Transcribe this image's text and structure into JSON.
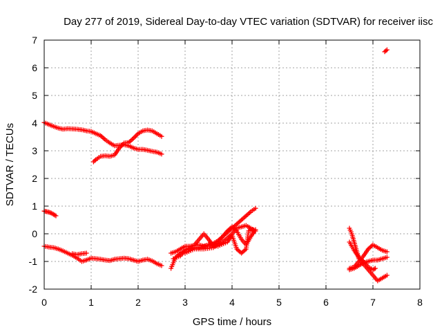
{
  "chart_data": {
    "type": "scatter",
    "title": "Day 277 of 2019, Sidereal Day-to-day VTEC variation (SDTVAR) for receiver iisc",
    "xlabel": "GPS time / hours",
    "ylabel": "SDTVAR / TECUs",
    "xlim": [
      0,
      8
    ],
    "ylim": [
      -2,
      7
    ],
    "xticks": [
      "0",
      "1",
      "2",
      "3",
      "4",
      "5",
      "6",
      "7",
      "8"
    ],
    "yticks": [
      "-2",
      "-1",
      "0",
      "1",
      "2",
      "3",
      "4",
      "5",
      "6",
      "7"
    ],
    "grid": true,
    "marker": "+",
    "color": "#ff0000",
    "series": [
      {
        "name": "track-a-upper",
        "points": [
          [
            0.0,
            4.02
          ],
          [
            0.1,
            3.95
          ],
          [
            0.2,
            3.88
          ],
          [
            0.3,
            3.82
          ],
          [
            0.4,
            3.78
          ],
          [
            0.5,
            3.8
          ],
          [
            0.6,
            3.79
          ],
          [
            0.7,
            3.78
          ],
          [
            0.8,
            3.76
          ],
          [
            0.9,
            3.72
          ],
          [
            1.0,
            3.7
          ],
          [
            1.1,
            3.62
          ],
          [
            1.2,
            3.55
          ],
          [
            1.3,
            3.4
          ],
          [
            1.4,
            3.28
          ],
          [
            1.5,
            3.18
          ],
          [
            1.6,
            3.2
          ],
          [
            1.7,
            3.22
          ],
          [
            1.8,
            3.18
          ],
          [
            1.9,
            3.1
          ],
          [
            2.0,
            3.05
          ],
          [
            2.1,
            3.05
          ],
          [
            2.2,
            3.02
          ],
          [
            2.3,
            2.98
          ],
          [
            2.4,
            2.95
          ],
          [
            2.5,
            2.88
          ]
        ]
      },
      {
        "name": "track-b-upper",
        "points": [
          [
            1.05,
            2.6
          ],
          [
            1.1,
            2.68
          ],
          [
            1.2,
            2.8
          ],
          [
            1.3,
            2.82
          ],
          [
            1.4,
            2.8
          ],
          [
            1.5,
            2.85
          ],
          [
            1.6,
            3.1
          ],
          [
            1.7,
            3.28
          ],
          [
            1.8,
            3.3
          ],
          [
            1.9,
            3.45
          ],
          [
            2.0,
            3.62
          ],
          [
            2.1,
            3.72
          ],
          [
            2.2,
            3.75
          ],
          [
            2.3,
            3.72
          ],
          [
            2.4,
            3.62
          ],
          [
            2.5,
            3.52
          ]
        ]
      },
      {
        "name": "track-c-short",
        "points": [
          [
            0.0,
            0.82
          ],
          [
            0.05,
            0.8
          ],
          [
            0.1,
            0.78
          ],
          [
            0.15,
            0.75
          ],
          [
            0.2,
            0.7
          ],
          [
            0.25,
            0.65
          ]
        ]
      },
      {
        "name": "track-d-lower",
        "points": [
          [
            0.0,
            -0.45
          ],
          [
            0.1,
            -0.48
          ],
          [
            0.2,
            -0.5
          ],
          [
            0.3,
            -0.55
          ],
          [
            0.4,
            -0.62
          ],
          [
            0.5,
            -0.7
          ],
          [
            0.6,
            -0.78
          ],
          [
            0.7,
            -0.88
          ],
          [
            0.8,
            -1.0
          ],
          [
            0.9,
            -0.95
          ],
          [
            1.0,
            -0.88
          ],
          [
            1.1,
            -0.9
          ],
          [
            1.2,
            -0.92
          ],
          [
            1.3,
            -0.95
          ],
          [
            1.4,
            -0.97
          ],
          [
            1.5,
            -0.92
          ],
          [
            1.6,
            -0.9
          ],
          [
            1.7,
            -0.88
          ],
          [
            1.8,
            -0.9
          ],
          [
            1.9,
            -0.95
          ],
          [
            2.0,
            -1.0
          ],
          [
            2.1,
            -0.95
          ],
          [
            2.2,
            -0.92
          ],
          [
            2.3,
            -0.98
          ],
          [
            2.4,
            -1.08
          ],
          [
            2.5,
            -1.15
          ]
        ]
      },
      {
        "name": "track-e-lower-short",
        "points": [
          [
            0.6,
            -0.72
          ],
          [
            0.7,
            -0.75
          ],
          [
            0.8,
            -0.72
          ],
          [
            0.9,
            -0.7
          ]
        ]
      },
      {
        "name": "track-f-mid-1",
        "points": [
          [
            2.7,
            -1.25
          ],
          [
            2.8,
            -0.85
          ],
          [
            2.9,
            -0.7
          ],
          [
            3.0,
            -0.6
          ],
          [
            3.1,
            -0.5
          ],
          [
            3.2,
            -0.4
          ],
          [
            3.3,
            -0.2
          ],
          [
            3.4,
            0.0
          ],
          [
            3.5,
            -0.2
          ],
          [
            3.6,
            -0.45
          ],
          [
            3.7,
            -0.3
          ],
          [
            3.8,
            -0.1
          ],
          [
            3.9,
            0.05
          ],
          [
            4.0,
            0.2
          ],
          [
            4.1,
            0.35
          ],
          [
            4.2,
            0.5
          ],
          [
            4.3,
            0.65
          ],
          [
            4.4,
            0.8
          ],
          [
            4.5,
            0.92
          ]
        ]
      },
      {
        "name": "track-g-mid-2",
        "points": [
          [
            2.7,
            -0.7
          ],
          [
            2.8,
            -0.65
          ],
          [
            2.9,
            -0.55
          ],
          [
            3.0,
            -0.45
          ],
          [
            3.1,
            -0.45
          ],
          [
            3.2,
            -0.42
          ],
          [
            3.3,
            -0.4
          ],
          [
            3.4,
            -0.45
          ],
          [
            3.5,
            -0.4
          ],
          [
            3.6,
            -0.35
          ],
          [
            3.7,
            -0.25
          ],
          [
            3.8,
            -0.1
          ],
          [
            3.9,
            0.1
          ],
          [
            4.0,
            0.25
          ],
          [
            4.1,
            0.1
          ],
          [
            4.2,
            -0.2
          ],
          [
            4.3,
            -0.4
          ],
          [
            4.4,
            -0.1
          ],
          [
            4.5,
            0.15
          ]
        ]
      },
      {
        "name": "track-h-mid-3",
        "points": [
          [
            2.75,
            -0.9
          ],
          [
            2.9,
            -0.8
          ],
          [
            3.0,
            -0.6
          ],
          [
            3.1,
            -0.55
          ],
          [
            3.2,
            -0.5
          ],
          [
            3.3,
            -0.5
          ],
          [
            3.5,
            -0.4
          ],
          [
            3.7,
            -0.45
          ],
          [
            3.9,
            -0.3
          ],
          [
            4.0,
            -0.05
          ],
          [
            4.1,
            -0.55
          ],
          [
            4.2,
            -0.7
          ],
          [
            4.3,
            -0.55
          ],
          [
            4.35,
            0.1
          ],
          [
            4.45,
            0.15
          ]
        ]
      },
      {
        "name": "track-i-mid-4",
        "points": [
          [
            3.0,
            -0.7
          ],
          [
            3.2,
            -0.55
          ],
          [
            3.4,
            -0.55
          ],
          [
            3.6,
            -0.5
          ],
          [
            3.8,
            -0.3
          ],
          [
            4.0,
            0.0
          ],
          [
            4.1,
            0.2
          ],
          [
            4.2,
            0.25
          ],
          [
            4.3,
            0.3
          ],
          [
            4.4,
            0.2
          ],
          [
            4.5,
            0.1
          ]
        ]
      },
      {
        "name": "track-j-right-1",
        "points": [
          [
            6.5,
            0.2
          ],
          [
            6.55,
            0.0
          ],
          [
            6.6,
            -0.3
          ],
          [
            6.65,
            -0.6
          ],
          [
            6.7,
            -0.9
          ],
          [
            6.8,
            -1.1
          ],
          [
            6.9,
            -1.3
          ],
          [
            7.0,
            -1.5
          ],
          [
            7.1,
            -1.7
          ],
          [
            7.2,
            -1.6
          ],
          [
            7.3,
            -1.5
          ]
        ]
      },
      {
        "name": "track-k-right-2",
        "points": [
          [
            6.5,
            -1.25
          ],
          [
            6.6,
            -1.2
          ],
          [
            6.7,
            -1.0
          ],
          [
            6.8,
            -0.8
          ],
          [
            6.9,
            -0.55
          ],
          [
            7.0,
            -0.4
          ],
          [
            7.1,
            -0.5
          ],
          [
            7.2,
            -0.6
          ],
          [
            7.3,
            -0.65
          ]
        ]
      },
      {
        "name": "track-l-right-3",
        "points": [
          [
            6.5,
            -1.3
          ],
          [
            6.6,
            -1.25
          ],
          [
            6.7,
            -1.15
          ],
          [
            6.8,
            -1.05
          ],
          [
            6.9,
            -1.0
          ],
          [
            7.0,
            -0.95
          ],
          [
            7.1,
            -0.95
          ],
          [
            7.2,
            -0.9
          ],
          [
            7.3,
            -0.85
          ]
        ]
      },
      {
        "name": "track-m-right-4",
        "points": [
          [
            6.5,
            -0.3
          ],
          [
            6.6,
            -0.6
          ],
          [
            6.7,
            -0.85
          ],
          [
            6.8,
            -1.0
          ],
          [
            6.9,
            -1.2
          ],
          [
            7.0,
            -1.3
          ],
          [
            7.05,
            -1.25
          ]
        ]
      },
      {
        "name": "track-n-outlier",
        "points": [
          [
            7.25,
            6.58
          ],
          [
            7.3,
            6.65
          ]
        ]
      }
    ]
  }
}
